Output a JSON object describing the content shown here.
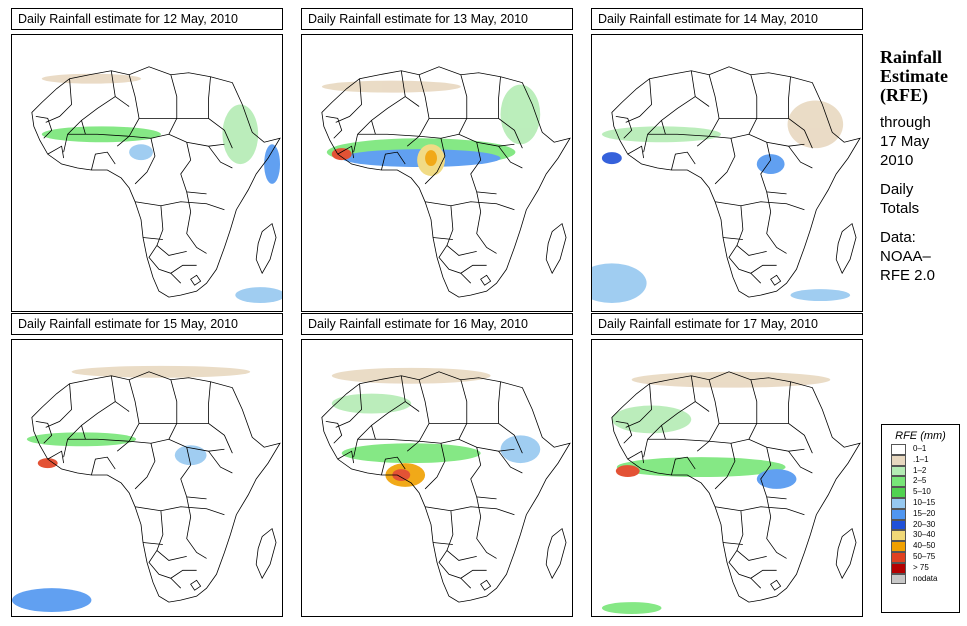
{
  "panels": [
    {
      "title": "Daily Rainfall estimate for  12 May, 2010",
      "date": "12 May, 2010"
    },
    {
      "title": "Daily Rainfall estimate for  13 May, 2010",
      "date": "13 May, 2010"
    },
    {
      "title": "Daily Rainfall estimate for  14 May, 2010",
      "date": "14 May, 2010"
    },
    {
      "title": "Daily Rainfall estimate for  15 May, 2010",
      "date": "15 May, 2010"
    },
    {
      "title": "Daily Rainfall estimate for  16 May, 2010",
      "date": "16 May, 2010"
    },
    {
      "title": "Daily Rainfall estimate for  17 May, 2010",
      "date": "17 May, 2010"
    }
  ],
  "sidebar": {
    "title_line1": "Rainfall",
    "title_line2": "Estimate",
    "title_line3": "(RFE)",
    "through": "through",
    "date_line1": "17 May",
    "date_line2": "2010",
    "totals_line1": "Daily",
    "totals_line2": "Totals",
    "data_label": "Data:",
    "source_line1": "NOAA–",
    "source_line2": "RFE 2.0"
  },
  "legend": {
    "title": "RFE (mm)",
    "items": [
      {
        "label": "0–1",
        "color": "#ffffff"
      },
      {
        "label": ".1–1",
        "color": "#e8d8c0"
      },
      {
        "label": "1–2",
        "color": "#b4ecb4"
      },
      {
        "label": "2–5",
        "color": "#78e678"
      },
      {
        "label": "5–10",
        "color": "#50d250"
      },
      {
        "label": "10–15",
        "color": "#96c8f0"
      },
      {
        "label": "15–20",
        "color": "#5096f0"
      },
      {
        "label": "20–30",
        "color": "#2050d8"
      },
      {
        "label": "30–40",
        "color": "#f0d878"
      },
      {
        "label": "40–50",
        "color": "#f0a000"
      },
      {
        "label": "50–75",
        "color": "#e04020"
      },
      {
        "label": "> 75",
        "color": "#b40000"
      },
      {
        "label": "nodata",
        "color": "#c8c8c8"
      }
    ]
  }
}
